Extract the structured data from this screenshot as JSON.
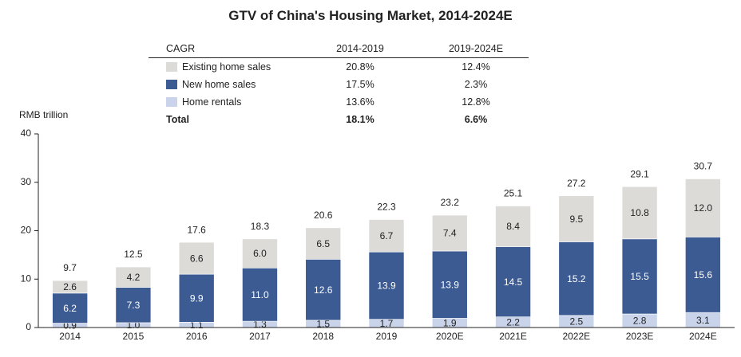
{
  "title": "GTV of China's Housing Market, 2014-2024E",
  "unit_label": "RMB trillion",
  "cagr_table": {
    "header": [
      "CAGR",
      "2014-2019",
      "2019-2024E"
    ],
    "rows": [
      {
        "label": "Existing home sales",
        "v1": "20.8%",
        "v2": "12.4%",
        "color": "#dcdbd8"
      },
      {
        "label": "New home sales",
        "v1": "17.5%",
        "v2": "2.3%",
        "color": "#3c5b93"
      },
      {
        "label": "Home rentals",
        "v1": "13.6%",
        "v2": "12.8%",
        "color": "#c9d4eb"
      }
    ],
    "total": {
      "label": "Total",
      "v1": "18.1%",
      "v2": "6.6%"
    }
  },
  "chart_data": {
    "type": "bar",
    "stacked": true,
    "categories": [
      "2014",
      "2015",
      "2016",
      "2017",
      "2018",
      "2019",
      "2020E",
      "2021E",
      "2022E",
      "2023E",
      "2024E"
    ],
    "series": [
      {
        "name": "Home rentals",
        "color": "#c9d4eb",
        "label_color": "#222222",
        "values": [
          0.9,
          1.0,
          1.1,
          1.3,
          1.5,
          1.7,
          1.9,
          2.2,
          2.5,
          2.8,
          3.1
        ]
      },
      {
        "name": "New home sales",
        "color": "#3c5b93",
        "label_color": "#ffffff",
        "values": [
          6.2,
          7.3,
          9.9,
          11.0,
          12.6,
          13.9,
          13.9,
          14.5,
          15.2,
          15.5,
          15.6
        ]
      },
      {
        "name": "Existing home sales",
        "color": "#dcdbd8",
        "label_color": "#222222",
        "values": [
          2.6,
          4.2,
          6.6,
          6.0,
          6.5,
          6.7,
          7.4,
          8.4,
          9.5,
          10.8,
          12.0
        ]
      }
    ],
    "totals": [
      9.7,
      12.5,
      17.6,
      18.3,
      20.6,
      22.3,
      23.2,
      25.1,
      27.2,
      29.1,
      30.7
    ],
    "ylim": [
      0,
      40
    ],
    "yticks": [
      0,
      10,
      20,
      30,
      40
    ],
    "grid": false
  }
}
